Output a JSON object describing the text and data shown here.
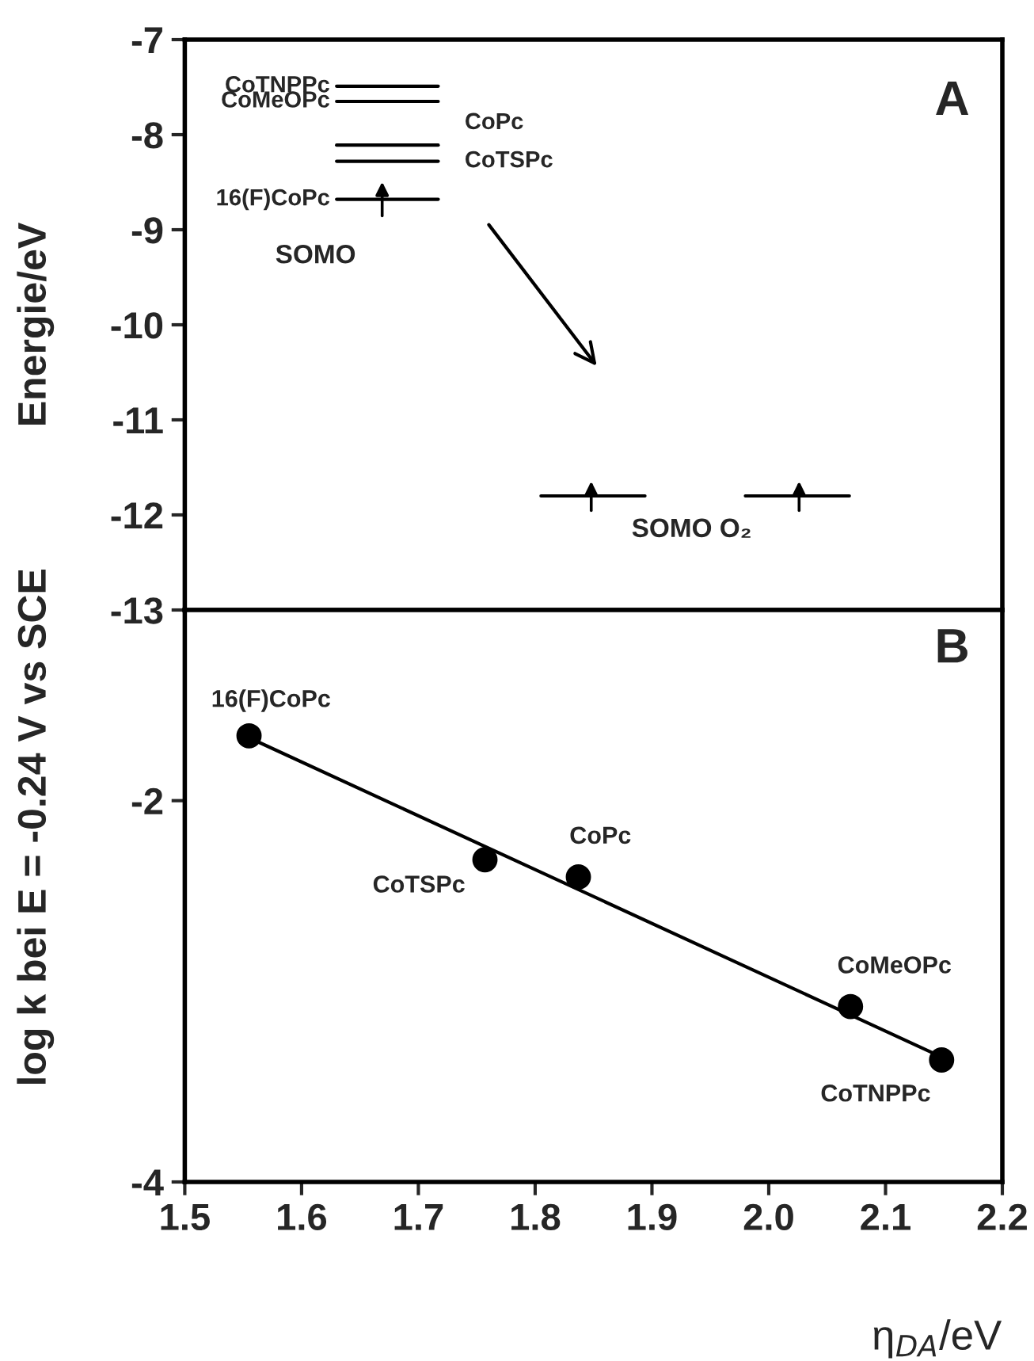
{
  "chart_data": [
    {
      "type": "line",
      "ylabel": "Energie/eV",
      "xlim": [
        1.5,
        2.2
      ],
      "ylim": [
        -13,
        -7
      ],
      "yticks": [
        -7,
        -8,
        -9,
        -10,
        -11,
        -12,
        -13
      ],
      "tick_labels": "y",
      "grid": false,
      "marker": "none",
      "line_style": "solid",
      "series": [
        {
          "name": "CoTNPPc",
          "color": "#000000",
          "x": [
            1.63,
            1.717
          ],
          "values": [
            -7.49,
            -7.49
          ]
        },
        {
          "name": "CoMeOPc",
          "color": "#000000",
          "x": [
            1.63,
            1.717
          ],
          "values": [
            -7.65,
            -7.65
          ]
        },
        {
          "name": "CoPc",
          "color": "#000000",
          "x": [
            1.63,
            1.717
          ],
          "values": [
            -8.11,
            -8.11
          ]
        },
        {
          "name": "CoTSPc",
          "color": "#000000",
          "x": [
            1.63,
            1.717
          ],
          "values": [
            -8.28,
            -8.28
          ]
        },
        {
          "name": "16(F)CoPc",
          "color": "#000000",
          "x": [
            1.63,
            1.717
          ],
          "values": [
            -8.68,
            -8.68
          ]
        },
        {
          "color": "#000000",
          "x": [
            1.805,
            1.894
          ],
          "values": [
            -11.8,
            -11.8
          ]
        },
        {
          "color": "#000000",
          "x": [
            1.98,
            2.069
          ],
          "values": [
            -11.8,
            -11.8
          ]
        }
      ],
      "annotations": [
        "A",
        "SOMO",
        "SOMO O₂"
      ]
    },
    {
      "type": "scatter",
      "xlabel": "η$_{DA}$/eV",
      "ylabel": "log k bei E = -0.24 V vs SCE",
      "xlim": [
        1.5,
        2.2
      ],
      "ylim": [
        -4,
        -1
      ],
      "xticks": [
        1.5,
        1.6,
        1.7,
        1.8,
        1.9,
        {
          "value": 2.0,
          "label": "2.0"
        },
        2.1,
        2.2
      ],
      "yticks": [
        -4,
        -2
      ],
      "grid": false,
      "legend": false,
      "series": [
        {
          "type": "scatter",
          "marker": "circle",
          "color": "#000000",
          "x": [
            1.555,
            1.757,
            1.837,
            2.07,
            2.148
          ],
          "values": [
            -1.66,
            -2.31,
            -2.4,
            -3.08,
            -3.36
          ]
        },
        {
          "type": "line",
          "marker": "none",
          "color": "#000000",
          "x": [
            1.555,
            2.15
          ],
          "values": [
            -1.67,
            -3.35
          ]
        }
      ],
      "annotations": [
        "B",
        {
          "text": "16(F)CoPc",
          "x": 1.555,
          "y": -1.66
        },
        {
          "text": "CoTSPc",
          "x": 1.757,
          "y": -2.31
        },
        {
          "text": "CoPc",
          "x": 1.837,
          "y": -2.4
        },
        {
          "text": "CoMeOPc",
          "x": 2.07,
          "y": -3.08
        },
        {
          "text": "CoTNPPc",
          "x": 2.148,
          "y": -3.36
        }
      ]
    }
  ]
}
